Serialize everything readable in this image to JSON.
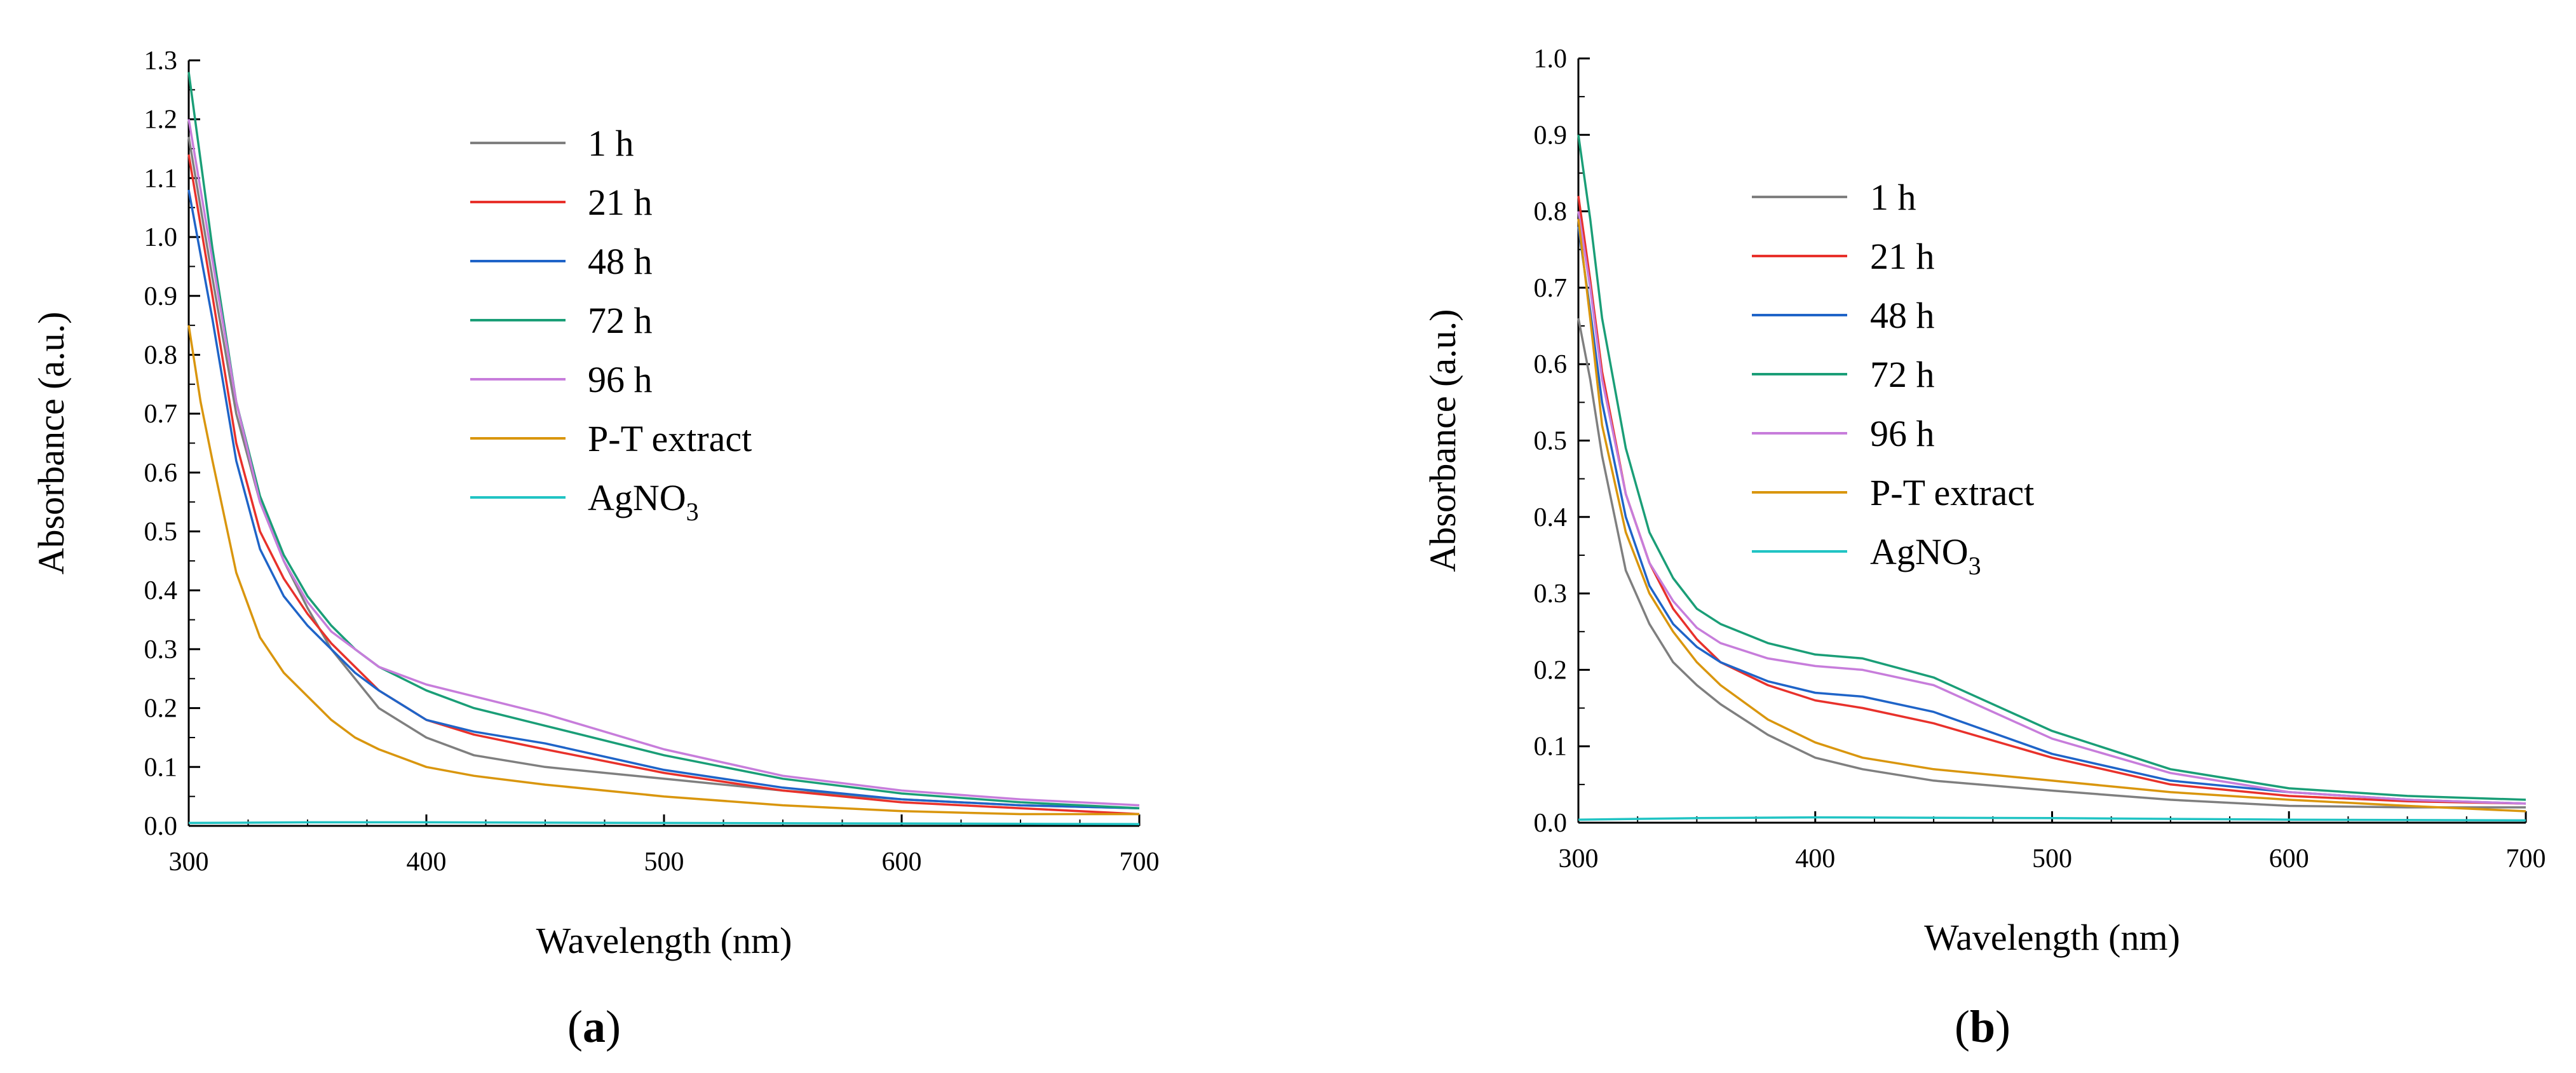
{
  "chart_data": [
    {
      "type": "line",
      "panel_label": "a",
      "xlabel": "Wavelength (nm)",
      "ylabel": "Absorbance (a.u.)",
      "xlim": [
        300,
        700
      ],
      "ylim": [
        0.0,
        1.3
      ],
      "x_ticks": [
        "300",
        "400",
        "500",
        "600",
        "700"
      ],
      "y_ticks": [
        "0.0",
        "0.1",
        "0.2",
        "0.3",
        "0.4",
        "0.5",
        "0.6",
        "0.7",
        "0.8",
        "0.9",
        "1.0",
        "1.1",
        "1.2",
        "1.3"
      ],
      "legend_position": "top-center",
      "series": [
        {
          "name": "1 h",
          "label_main": "1 h",
          "label_sub": "",
          "color": "#7f7f7f",
          "x": [
            300,
            305,
            310,
            320,
            330,
            340,
            350,
            360,
            370,
            380,
            400,
            420,
            450,
            500,
            550,
            600,
            650,
            700
          ],
          "y": [
            1.17,
            1.05,
            0.93,
            0.7,
            0.55,
            0.45,
            0.37,
            0.3,
            0.25,
            0.2,
            0.15,
            0.12,
            0.1,
            0.08,
            0.06,
            0.045,
            0.035,
            0.03
          ]
        },
        {
          "name": "21 h",
          "label_main": "21 h",
          "label_sub": "",
          "color": "#e8312b",
          "x": [
            300,
            305,
            310,
            320,
            330,
            340,
            350,
            360,
            370,
            380,
            400,
            420,
            450,
            500,
            550,
            600,
            650,
            700
          ],
          "y": [
            1.14,
            1.02,
            0.9,
            0.65,
            0.5,
            0.42,
            0.36,
            0.31,
            0.27,
            0.23,
            0.18,
            0.155,
            0.13,
            0.09,
            0.06,
            0.04,
            0.03,
            0.02
          ]
        },
        {
          "name": "48 h",
          "label_main": "48 h",
          "label_sub": "",
          "color": "#1f64c8",
          "x": [
            300,
            305,
            310,
            320,
            330,
            340,
            350,
            360,
            370,
            380,
            400,
            420,
            450,
            500,
            550,
            600,
            650,
            700
          ],
          "y": [
            1.08,
            0.97,
            0.86,
            0.62,
            0.47,
            0.39,
            0.34,
            0.3,
            0.26,
            0.23,
            0.18,
            0.16,
            0.14,
            0.095,
            0.065,
            0.045,
            0.035,
            0.03
          ]
        },
        {
          "name": "72 h",
          "label_main": "72 h",
          "label_sub": "",
          "color": "#1a9e77",
          "x": [
            300,
            305,
            310,
            320,
            330,
            340,
            350,
            360,
            370,
            380,
            400,
            420,
            450,
            500,
            550,
            600,
            650,
            700
          ],
          "y": [
            1.28,
            1.13,
            0.98,
            0.72,
            0.56,
            0.46,
            0.39,
            0.34,
            0.3,
            0.27,
            0.23,
            0.2,
            0.17,
            0.12,
            0.08,
            0.055,
            0.04,
            0.03
          ]
        },
        {
          "name": "96 h",
          "label_main": "96 h",
          "label_sub": "",
          "color": "#c77ddb",
          "x": [
            300,
            305,
            310,
            320,
            330,
            340,
            350,
            360,
            370,
            380,
            400,
            420,
            450,
            500,
            550,
            600,
            650,
            700
          ],
          "y": [
            1.2,
            1.08,
            0.96,
            0.72,
            0.55,
            0.45,
            0.38,
            0.33,
            0.3,
            0.27,
            0.24,
            0.22,
            0.19,
            0.13,
            0.085,
            0.06,
            0.045,
            0.035
          ]
        },
        {
          "name": "P-T extract",
          "label_main": "P-T extract",
          "label_sub": "",
          "color": "#d9960e",
          "x": [
            300,
            305,
            310,
            320,
            330,
            340,
            350,
            360,
            370,
            380,
            400,
            420,
            450,
            500,
            550,
            600,
            650,
            700
          ],
          "y": [
            0.85,
            0.72,
            0.62,
            0.43,
            0.32,
            0.26,
            0.22,
            0.18,
            0.15,
            0.13,
            0.1,
            0.085,
            0.07,
            0.05,
            0.035,
            0.025,
            0.02,
            0.02
          ]
        },
        {
          "name": "AgNO3",
          "label_main": "AgNO",
          "label_sub": "3",
          "color": "#21c4c4",
          "x": [
            300,
            350,
            400,
            500,
            600,
            700
          ],
          "y": [
            0.005,
            0.006,
            0.006,
            0.005,
            0.004,
            0.003
          ]
        }
      ]
    },
    {
      "type": "line",
      "panel_label": "b",
      "xlabel": "Wavelength (nm)",
      "ylabel": "Absorbance (a.u.)",
      "xlim": [
        300,
        700
      ],
      "ylim": [
        0.0,
        1.0
      ],
      "x_ticks": [
        "300",
        "400",
        "500",
        "600",
        "700"
      ],
      "y_ticks": [
        "0.0",
        "0.1",
        "0.2",
        "0.3",
        "0.4",
        "0.5",
        "0.6",
        "0.7",
        "0.8",
        "0.9",
        "1.0"
      ],
      "legend_position": "top-center",
      "series": [
        {
          "name": "1 h",
          "label_main": "1 h",
          "label_sub": "",
          "color": "#7f7f7f",
          "x": [
            300,
            305,
            310,
            320,
            330,
            340,
            350,
            360,
            380,
            400,
            420,
            450,
            500,
            550,
            600,
            650,
            700
          ],
          "y": [
            0.66,
            0.58,
            0.48,
            0.33,
            0.26,
            0.21,
            0.18,
            0.155,
            0.115,
            0.085,
            0.07,
            0.055,
            0.042,
            0.03,
            0.022,
            0.02,
            0.02
          ]
        },
        {
          "name": "21 h",
          "label_main": "21 h",
          "label_sub": "",
          "color": "#e8312b",
          "x": [
            300,
            305,
            310,
            320,
            330,
            340,
            350,
            360,
            380,
            400,
            420,
            450,
            500,
            550,
            600,
            650,
            700
          ],
          "y": [
            0.82,
            0.71,
            0.59,
            0.43,
            0.34,
            0.28,
            0.24,
            0.21,
            0.18,
            0.16,
            0.15,
            0.13,
            0.085,
            0.05,
            0.035,
            0.028,
            0.025
          ]
        },
        {
          "name": "48 h",
          "label_main": "48 h",
          "label_sub": "",
          "color": "#1f64c8",
          "x": [
            300,
            305,
            310,
            320,
            330,
            340,
            350,
            360,
            380,
            400,
            420,
            450,
            500,
            550,
            600,
            650,
            700
          ],
          "y": [
            0.78,
            0.67,
            0.55,
            0.4,
            0.31,
            0.26,
            0.23,
            0.21,
            0.185,
            0.17,
            0.165,
            0.145,
            0.09,
            0.055,
            0.04,
            0.03,
            0.025
          ]
        },
        {
          "name": "72 h",
          "label_main": "72 h",
          "label_sub": "",
          "color": "#1a9e77",
          "x": [
            300,
            305,
            310,
            320,
            330,
            340,
            350,
            360,
            380,
            400,
            420,
            450,
            500,
            550,
            600,
            650,
            700
          ],
          "y": [
            0.9,
            0.79,
            0.66,
            0.49,
            0.38,
            0.32,
            0.28,
            0.26,
            0.235,
            0.22,
            0.215,
            0.19,
            0.12,
            0.07,
            0.045,
            0.035,
            0.03
          ]
        },
        {
          "name": "96 h",
          "label_main": "96 h",
          "label_sub": "",
          "color": "#c77ddb",
          "x": [
            300,
            305,
            310,
            320,
            330,
            340,
            350,
            360,
            380,
            400,
            420,
            450,
            500,
            550,
            600,
            650,
            700
          ],
          "y": [
            0.8,
            0.7,
            0.58,
            0.43,
            0.34,
            0.29,
            0.255,
            0.235,
            0.215,
            0.205,
            0.2,
            0.18,
            0.11,
            0.065,
            0.04,
            0.03,
            0.025
          ]
        },
        {
          "name": "P-T extract",
          "label_main": "P-T extract",
          "label_sub": "",
          "color": "#d9960e",
          "x": [
            300,
            305,
            310,
            320,
            330,
            340,
            350,
            360,
            380,
            400,
            420,
            450,
            500,
            550,
            600,
            650,
            700
          ],
          "y": [
            0.79,
            0.66,
            0.52,
            0.38,
            0.3,
            0.25,
            0.21,
            0.18,
            0.135,
            0.105,
            0.085,
            0.07,
            0.055,
            0.04,
            0.03,
            0.022,
            0.015
          ]
        },
        {
          "name": "AgNO3",
          "label_main": "AgNO",
          "label_sub": "3",
          "color": "#21c4c4",
          "x": [
            300,
            350,
            400,
            500,
            600,
            700
          ],
          "y": [
            0.004,
            0.006,
            0.007,
            0.006,
            0.004,
            0.003
          ]
        }
      ]
    }
  ]
}
